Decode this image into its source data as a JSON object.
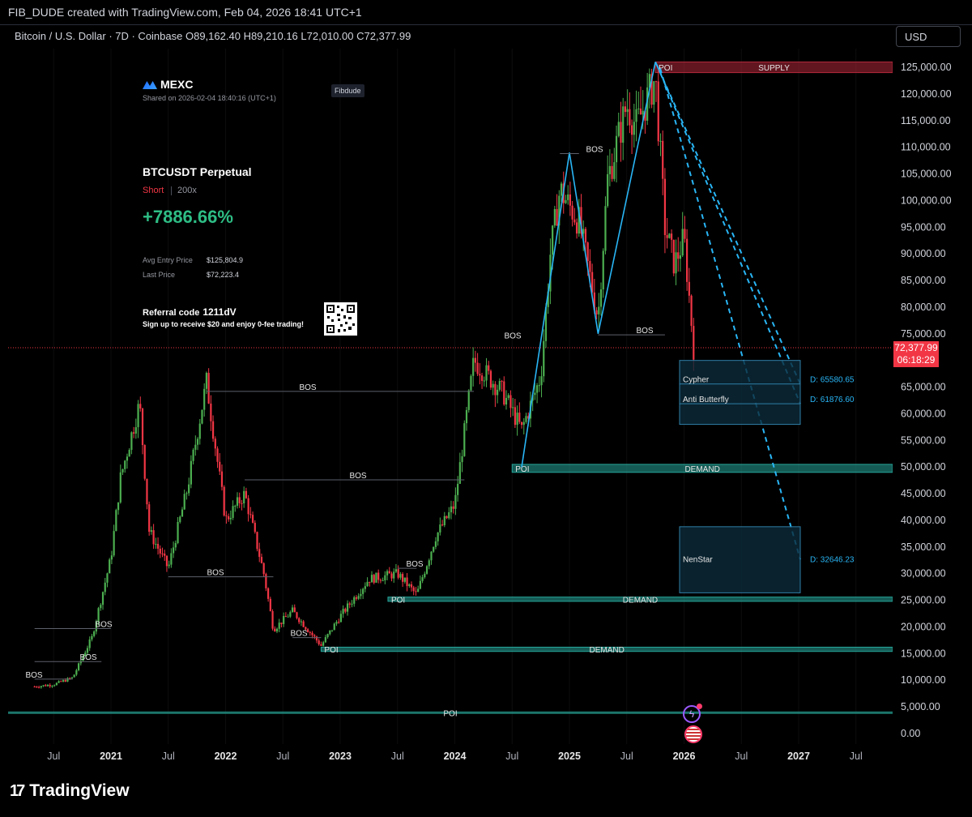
{
  "header": {
    "created_line": "FIB_DUDE created with TradingView.com, Feb 04, 2026 18:41 UTC+1"
  },
  "legend": {
    "symbol": "Bitcoin / U.S. Dollar · 7D · Coinbase",
    "open": "O89,162.40",
    "high": "H89,210.16",
    "low": "L72,010.00",
    "close": "C72,377.99"
  },
  "currency_button": "USD",
  "promo": {
    "brand": "MEXC",
    "shared": "Shared on 2026-02-04 18:40:16 (UTC+1)",
    "user_tag": "Fibdude",
    "pair": "BTCUSDT Perpetual",
    "side": "Short",
    "leverage": "200x",
    "pnl": "+7886.66%",
    "avg_entry_label": "Avg Entry Price",
    "avg_entry_value": "$125,804.9",
    "last_price_label": "Last Price",
    "last_price_value": "$72,223.4",
    "referral_label": "Referral code",
    "referral_code": "1211dV",
    "referral_sub": "Sign up to receive $20 and enjoy 0-fee trading!"
  },
  "last_price_tag": {
    "price": "72,377.99",
    "countdown": "06:18:29"
  },
  "brand_footer": "TradingView",
  "colors": {
    "up": "#4caf50",
    "down": "#f23645",
    "zone_teal": "#26a69a",
    "supply": "#b2283a",
    "pattern_blue": "#29b6f6",
    "projection_box": "#0b2a3a"
  },
  "chart_data": {
    "type": "candlestick",
    "timeframe": "7D",
    "x_ticks": [
      "Jul",
      "2021",
      "Jul",
      "2022",
      "Jul",
      "2023",
      "Jul",
      "2024",
      "Jul",
      "2025",
      "Jul",
      "2026",
      "Jul",
      "2027",
      "Jul"
    ],
    "x_tick_dates": [
      "2020-07",
      "2021-01",
      "2021-07",
      "2022-01",
      "2022-07",
      "2023-01",
      "2023-07",
      "2024-01",
      "2024-07",
      "2025-01",
      "2025-07",
      "2026-01",
      "2026-07",
      "2027-01",
      "2027-07"
    ],
    "y_ticks": [
      "125,000.00",
      "120,000.00",
      "115,000.00",
      "110,000.00",
      "105,000.00",
      "100,000.00",
      "95,000.00",
      "90,000.00",
      "85,000.00",
      "80,000.00",
      "75,000.00",
      "65,000.00",
      "60,000.00",
      "55,000.00",
      "50,000.00",
      "45,000.00",
      "40,000.00",
      "35,000.00",
      "30,000.00",
      "25,000.00",
      "20,000.00",
      "15,000.00",
      "10,000.00",
      "5,000.00",
      "0.00"
    ],
    "ylim": [
      0,
      127000
    ],
    "price_path": [
      [
        "2020-05",
        8800
      ],
      [
        "2020-07",
        9200
      ],
      [
        "2020-09",
        10500
      ],
      [
        "2020-11",
        18000
      ],
      [
        "2021-01",
        33000
      ],
      [
        "2021-02",
        48000
      ],
      [
        "2021-04",
        62000
      ],
      [
        "2021-05",
        38000
      ],
      [
        "2021-07",
        31000
      ],
      [
        "2021-09",
        46000
      ],
      [
        "2021-11",
        66000
      ],
      [
        "2022-01",
        40000
      ],
      [
        "2022-03",
        45000
      ],
      [
        "2022-05",
        30000
      ],
      [
        "2022-06",
        19500
      ],
      [
        "2022-08",
        23000
      ],
      [
        "2022-11",
        16500
      ],
      [
        "2023-01",
        22000
      ],
      [
        "2023-04",
        29000
      ],
      [
        "2023-07",
        30000
      ],
      [
        "2023-09",
        26000
      ],
      [
        "2023-11",
        37000
      ],
      [
        "2024-01",
        43000
      ],
      [
        "2024-03",
        70000
      ],
      [
        "2024-06",
        64000
      ],
      [
        "2024-08",
        57000
      ],
      [
        "2024-10",
        67000
      ],
      [
        "2024-11",
        90000
      ],
      [
        "2024-12",
        102000
      ],
      [
        "2025-02",
        96000
      ],
      [
        "2025-04",
        78000
      ],
      [
        "2025-05",
        104000
      ],
      [
        "2025-07",
        118000
      ],
      [
        "2025-08",
        114000
      ],
      [
        "2025-10",
        123000
      ],
      [
        "2025-11",
        95000
      ],
      [
        "2025-12",
        88000
      ],
      [
        "2026-01",
        93000
      ],
      [
        "2026-02",
        72378
      ]
    ],
    "zones": [
      {
        "label": "SUPPLY",
        "poi": "POI",
        "low": 124000,
        "high": 126000
      },
      {
        "label": "DEMAND",
        "poi": "POI",
        "low": 49000,
        "high": 50500
      },
      {
        "label": "DEMAND",
        "poi": "POI",
        "low": 24800,
        "high": 25600
      },
      {
        "label": "DEMAND",
        "poi": "POI",
        "low": 15400,
        "high": 16200
      }
    ],
    "bos_labels": [
      {
        "text": "BOS",
        "price": 108800
      },
      {
        "text": "BOS",
        "price": 74800
      },
      {
        "text": "BOS",
        "price": 73800
      },
      {
        "text": "BOS",
        "price": 64200
      },
      {
        "text": "BOS",
        "price": 47600
      },
      {
        "text": "BOS",
        "price": 29400
      },
      {
        "text": "BOS",
        "price": 31000
      },
      {
        "text": "BOS",
        "price": 18000
      },
      {
        "text": "BOS",
        "price": 19700
      },
      {
        "text": "BOS",
        "price": 13500
      },
      {
        "text": "BOS",
        "price": 10200
      }
    ],
    "bottom_poi": {
      "text": "POI",
      "price": 3300
    },
    "projections": [
      {
        "name": "Cypher",
        "target_label": "D: 65580.65",
        "price": 65580.65
      },
      {
        "name": "Anti Butterfly",
        "target_label": "D: 61876.60",
        "price": 61876.6
      },
      {
        "name": "NenStar",
        "target_label": "D: 32646.23",
        "price": 32646.23
      }
    ],
    "last_price": 72377.99
  }
}
